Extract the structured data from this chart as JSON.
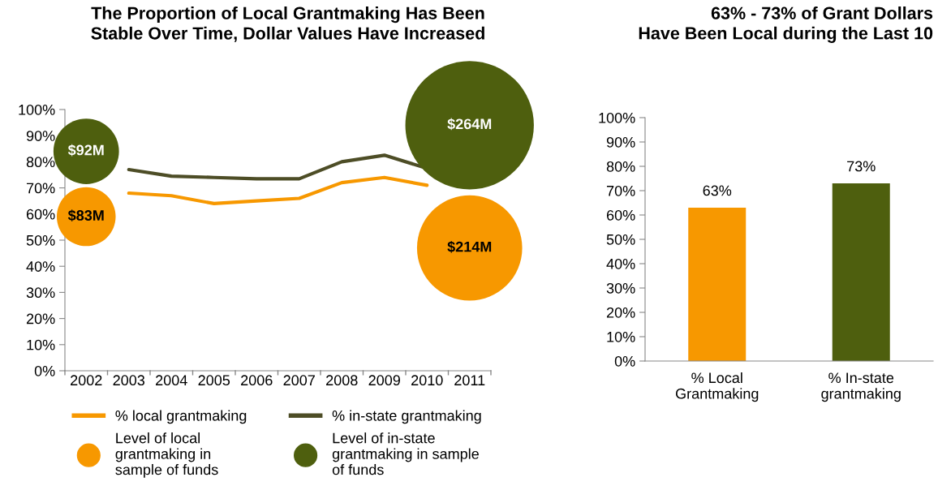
{
  "chart_data": [
    {
      "type": "line",
      "title": "The Proportion of Local Grantmaking Has Been\nStable Over Time, Dollar Values Have Increased",
      "categories": [
        "2002",
        "2003",
        "2004",
        "2005",
        "2006",
        "2007",
        "2008",
        "2009",
        "2010",
        "2011"
      ],
      "ylim": [
        0,
        100
      ],
      "yticks": [
        {
          "value": 0,
          "label": "0%"
        },
        {
          "value": 10,
          "label": "10%"
        },
        {
          "value": 20,
          "label": "20%"
        },
        {
          "value": 30,
          "label": "30%"
        },
        {
          "value": 40,
          "label": "40%"
        },
        {
          "value": 50,
          "label": "50%"
        },
        {
          "value": 60,
          "label": "60%"
        },
        {
          "value": 70,
          "label": "70%"
        },
        {
          "value": 80,
          "label": "80%"
        },
        {
          "value": 90,
          "label": "90%"
        },
        {
          "value": 100,
          "label": "100%"
        }
      ],
      "series": [
        {
          "name": "% local grantmaking",
          "type": "line",
          "color": "#f79800",
          "values": [
            null,
            68,
            67,
            64,
            65,
            66,
            72,
            74,
            71,
            null
          ]
        },
        {
          "name": "% in-state grantmaking",
          "type": "line",
          "color": "#4d4d26",
          "values": [
            null,
            77,
            74.5,
            74,
            73.5,
            73.5,
            80,
            82.5,
            77.5,
            null
          ]
        },
        {
          "name": "Level of local\ngrantmaking in\nsample of funds",
          "type": "bubble",
          "color": "#f79800",
          "values": [
            59,
            null,
            null,
            null,
            null,
            null,
            null,
            null,
            null,
            47
          ],
          "sizes": [
            0.21,
            null,
            null,
            null,
            null,
            null,
            null,
            null,
            null,
            0.67
          ]
        },
        {
          "name": "Level of in-state\ngrantmaking in sample\nof funds",
          "type": "bubble",
          "color": "#4e5f0e",
          "values": [
            84,
            null,
            null,
            null,
            null,
            null,
            null,
            null,
            null,
            94
          ],
          "sizes": [
            0.26,
            null,
            null,
            null,
            null,
            null,
            null,
            null,
            null,
            1
          ]
        }
      ],
      "annotations": [
        {
          "text": "$83M",
          "x": "2002",
          "y": 59
        },
        {
          "text": "$214M",
          "x": "2011",
          "y": 47
        },
        {
          "text": "$92M",
          "x": "2002",
          "y": 84
        },
        {
          "text": "$264M",
          "x": "2011",
          "y": 94
        }
      ],
      "legend": "bottom",
      "grid": false
    },
    {
      "type": "bar",
      "title": "63% - 73% of Grant Dollars\nHave Been Local during the Last 10",
      "categories": [
        "% Local\nGrantmaking",
        "% In-state\ngrantmaking"
      ],
      "values": [
        63,
        73
      ],
      "colors": [
        "#f79800",
        "#4e5f0e"
      ],
      "value_labels": [
        "63%",
        "73%"
      ],
      "ylim": [
        0,
        100
      ],
      "yticks": [
        {
          "value": 0,
          "label": "0%"
        },
        {
          "value": 10,
          "label": "10%"
        },
        {
          "value": 20,
          "label": "20%"
        },
        {
          "value": 30,
          "label": "30%"
        },
        {
          "value": 40,
          "label": "40%"
        },
        {
          "value": 50,
          "label": "50%"
        },
        {
          "value": 60,
          "label": "60%"
        },
        {
          "value": 70,
          "label": "70%"
        },
        {
          "value": 80,
          "label": "80%"
        },
        {
          "value": 90,
          "label": "90%"
        },
        {
          "value": 100,
          "label": "100%"
        }
      ],
      "grid": false
    }
  ]
}
